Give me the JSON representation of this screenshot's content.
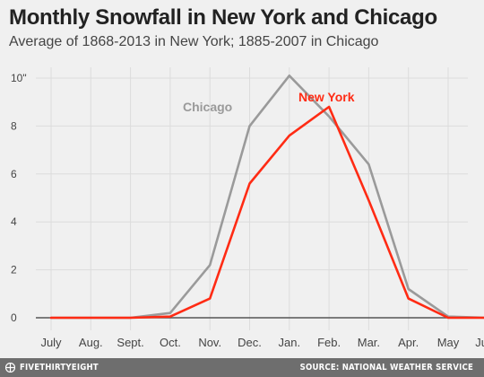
{
  "header": {
    "title": "Monthly Snowfall in New York and Chicago",
    "subtitle": "Average of 1868-2013 in New York; 1885-2007 in Chicago"
  },
  "footer": {
    "brand": "FIVETHIRTYEIGHT",
    "source": "SOURCE: NATIONAL WEATHER SERVICE"
  },
  "chart_data": {
    "type": "line",
    "title": "Monthly Snowfall in New York and Chicago",
    "subtitle": "Average of 1868-2013 in New York; 1885-2007 in Chicago",
    "categories": [
      "July",
      "Aug.",
      "Sept.",
      "Oct.",
      "Nov.",
      "Dec.",
      "Jan.",
      "Feb.",
      "Mar.",
      "Apr.",
      "May",
      "June"
    ],
    "y_ticks": [
      "0",
      "2",
      "4",
      "6",
      "8",
      "10\""
    ],
    "ylim": [
      0,
      10.5
    ],
    "grid": true,
    "series": [
      {
        "name": "Chicago",
        "color": "#9a9a9a",
        "values": [
          0,
          0,
          0,
          0.2,
          2.2,
          8.0,
          10.1,
          8.4,
          6.4,
          1.2,
          0.05,
          0
        ]
      },
      {
        "name": "New York",
        "color": "#ff2b14",
        "values": [
          0,
          0,
          0,
          0.05,
          0.8,
          5.6,
          7.6,
          8.8,
          4.9,
          0.8,
          0,
          0
        ]
      }
    ]
  }
}
